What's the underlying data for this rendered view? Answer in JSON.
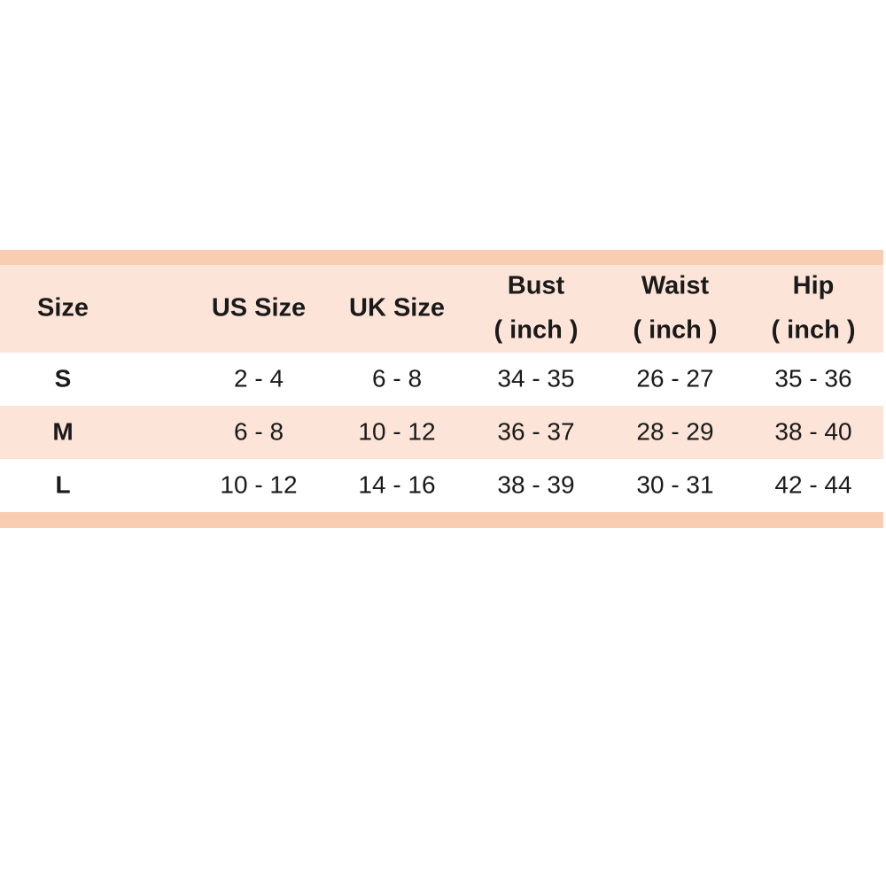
{
  "table": {
    "headers": [
      [
        "Size"
      ],
      [
        "US Size"
      ],
      [
        "UK Size"
      ],
      [
        "Bust",
        "( inch )"
      ],
      [
        "Waist",
        "( inch )"
      ],
      [
        "Hip",
        "( inch )"
      ]
    ],
    "rows": [
      [
        "S",
        "2 - 4",
        "6 - 8",
        "34 - 35",
        "26 - 27",
        "35 - 36"
      ],
      [
        "M",
        "6 - 8",
        "10 - 12",
        "36 - 37",
        "28 - 29",
        "38 - 40"
      ],
      [
        "L",
        "10 - 12",
        "14 - 16",
        "38 - 39",
        "30 - 31",
        "42 - 44"
      ]
    ]
  }
}
